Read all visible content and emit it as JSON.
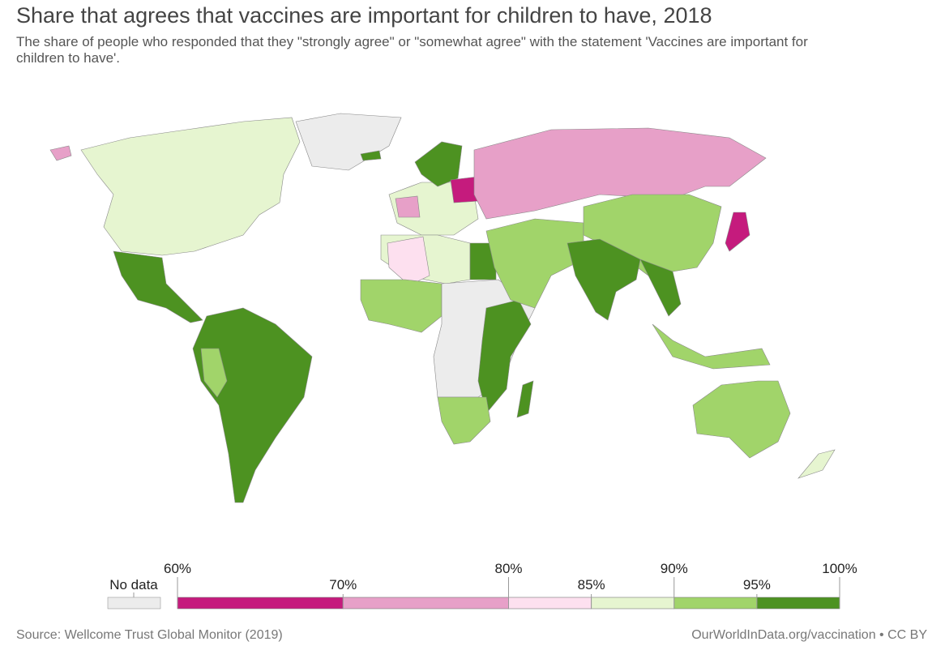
{
  "header": {
    "title": "Share that agrees that vaccines are important for children to have, 2018",
    "subtitle": "The share of people who responded that they \"strongly agree\" or \"somewhat agree\" with the statement 'Vaccines are important for children to have'."
  },
  "legend": {
    "no_data": "No data",
    "no_data_color": "#ececec",
    "ticks": [
      {
        "value": 60,
        "label": "60%"
      },
      {
        "value": 70,
        "label": "70%"
      },
      {
        "value": 80,
        "label": "80%"
      },
      {
        "value": 85,
        "label": "85%"
      },
      {
        "value": 90,
        "label": "90%"
      },
      {
        "value": 95,
        "label": "95%"
      },
      {
        "value": 100,
        "label": "100%"
      }
    ],
    "colors": [
      "#c51b7d",
      "#e7a0c8",
      "#fde0ef",
      "#e6f5d0",
      "#a1d46a",
      "#4d9221"
    ]
  },
  "footer": {
    "source": "Source: Wellcome Trust Global Monitor (2019)",
    "credit": "OurWorldInData.org/vaccination • CC BY"
  }
}
